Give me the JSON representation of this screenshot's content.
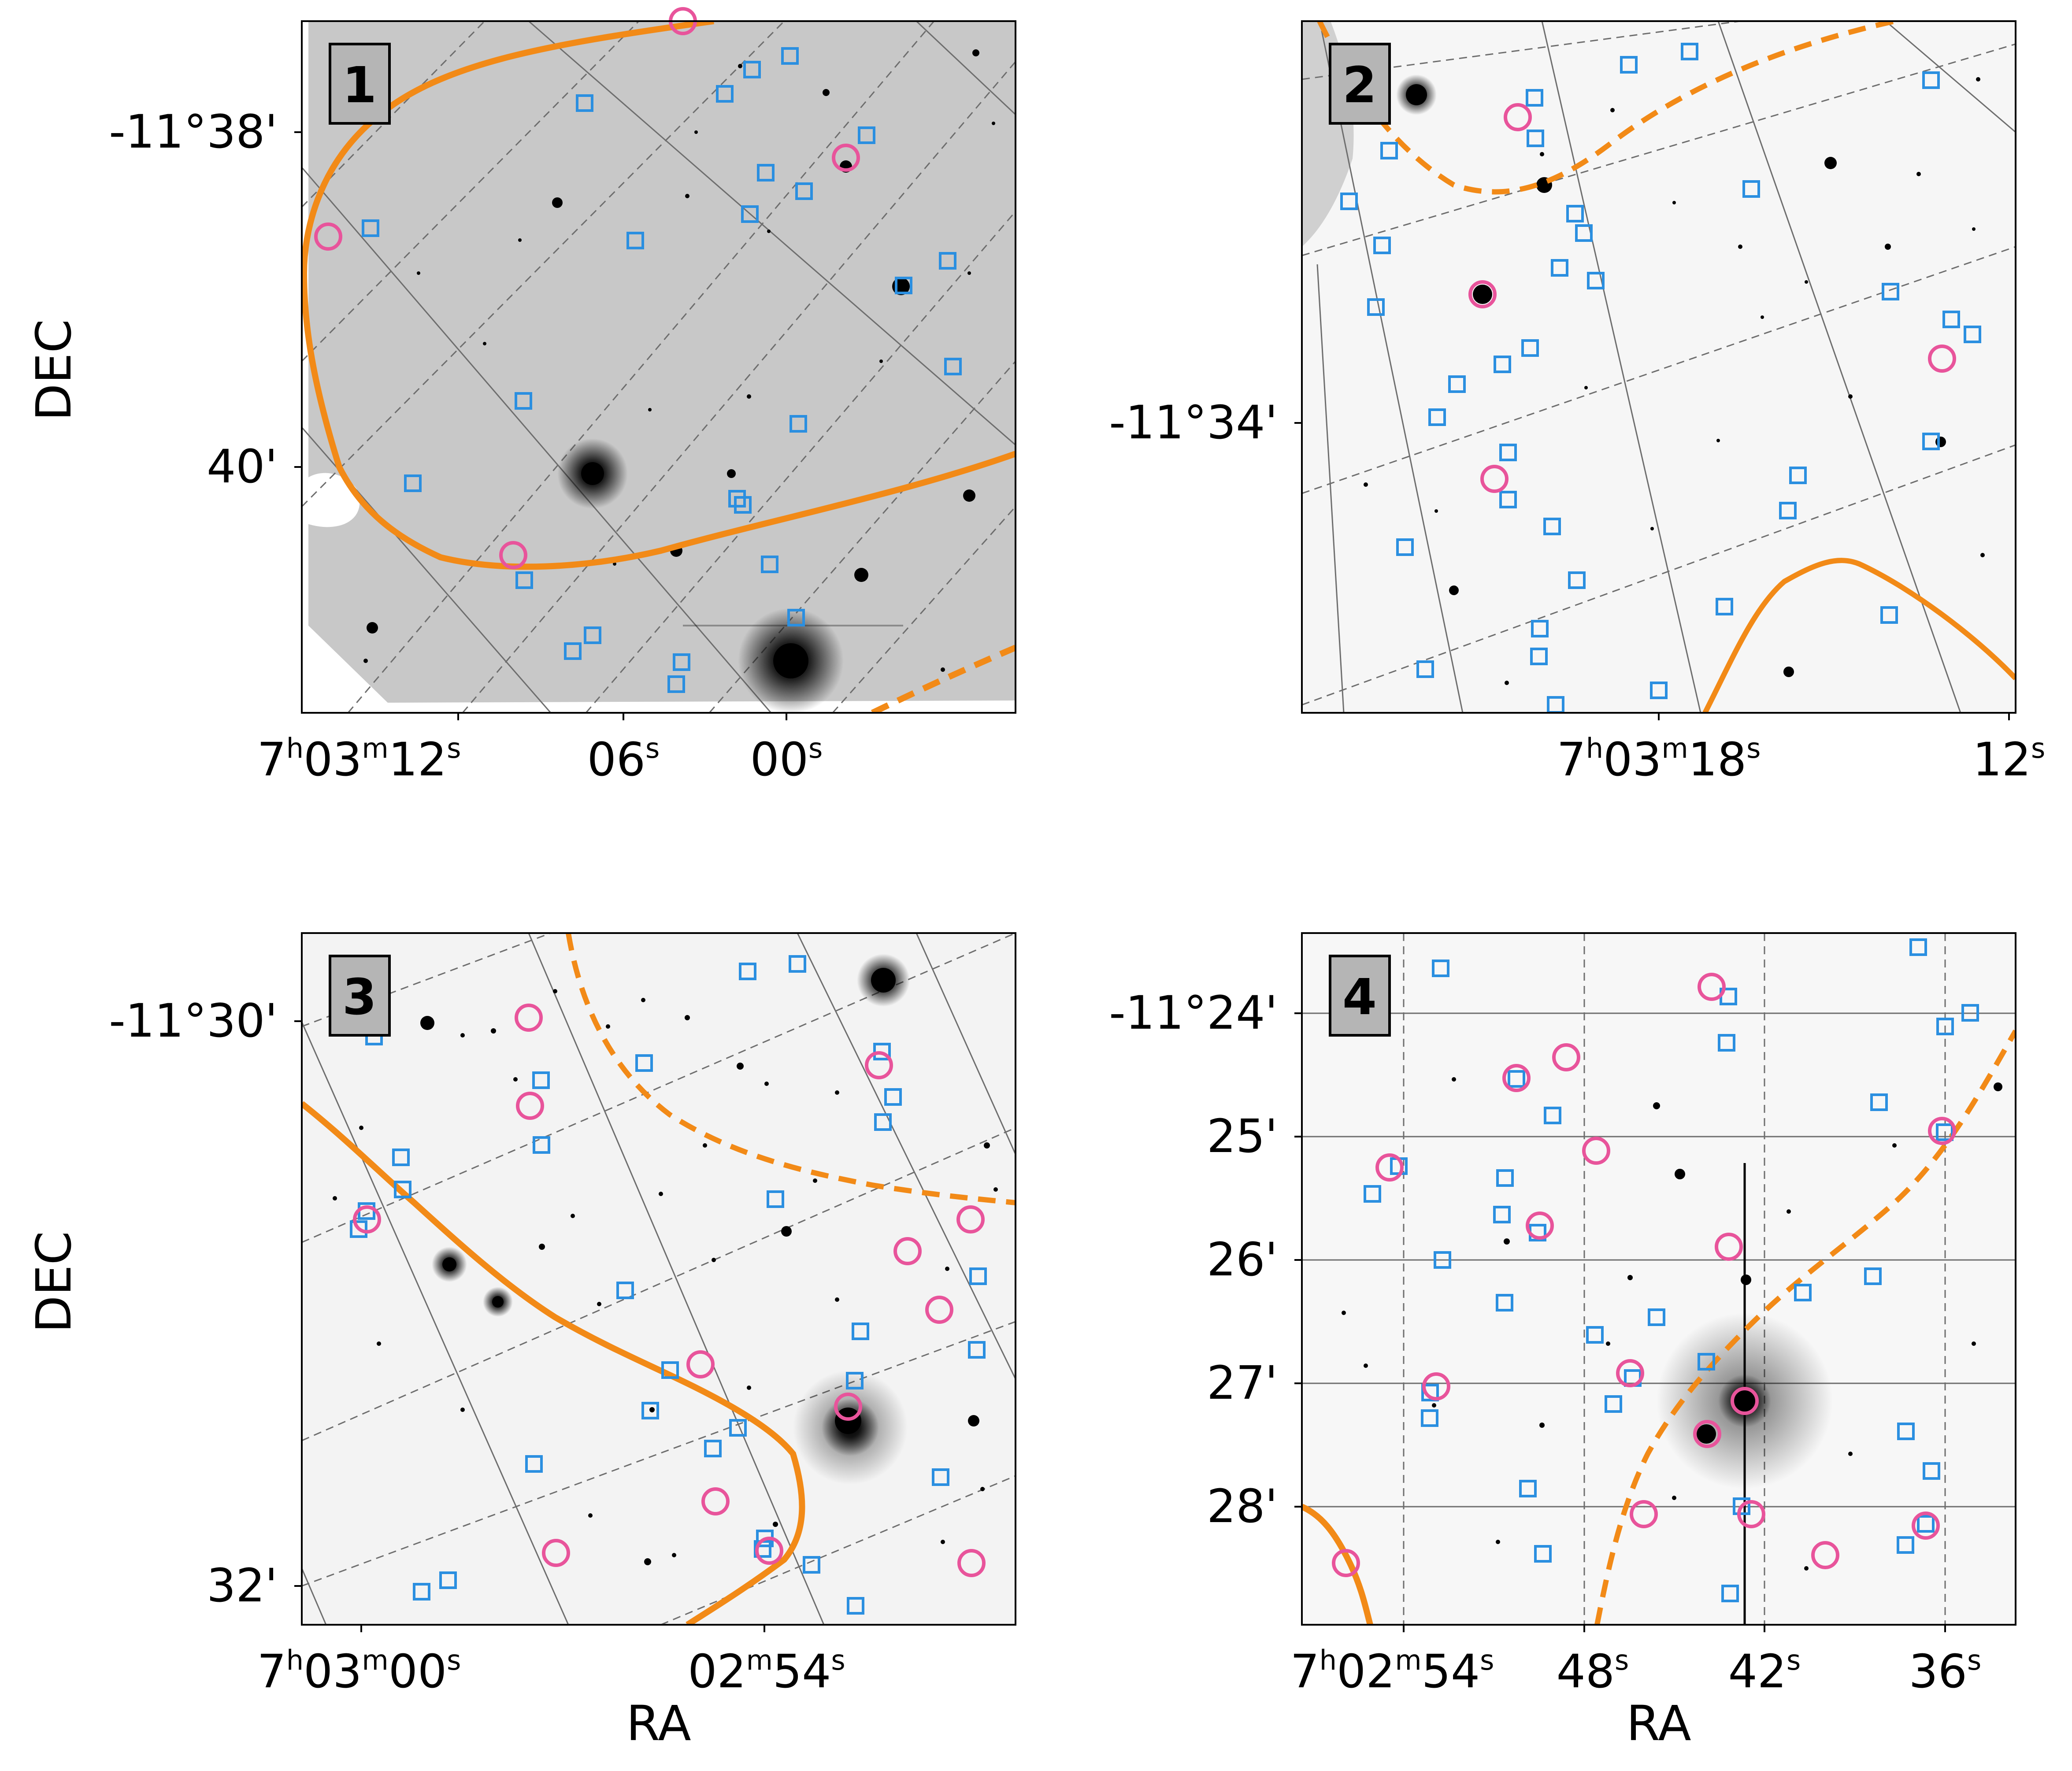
{
  "figure": {
    "colors": {
      "contour": "#f28a17",
      "square_marker": "#2b8fe0",
      "circle_marker": "#e8549b",
      "grid": "#666666",
      "panel_label_bg": "#b5b5b5"
    },
    "panels": [
      {
        "id": "1",
        "label": "1",
        "background": "#c8c8c8",
        "x_ticks": [
          {
            "main": "7",
            "sup1": "h",
            "mid": "03",
            "sup2": "m",
            "sec": "12",
            "sup3": "s"
          },
          {
            "main": "06",
            "sup1": "s"
          },
          {
            "main": "00",
            "sup1": "s"
          }
        ],
        "y_ticks": [
          "-11°38'",
          "40'"
        ],
        "ylabel": "DEC",
        "xlabel": ""
      },
      {
        "id": "2",
        "label": "2",
        "background": "#f6f6f6",
        "x_ticks": [
          {
            "main": "7",
            "sup1": "h",
            "mid": "03",
            "sup2": "m",
            "sec": "18",
            "sup3": "s"
          },
          {
            "main": "12",
            "sup1": "s"
          }
        ],
        "y_ticks": [
          "-11°34'"
        ],
        "ylabel": "",
        "xlabel": ""
      },
      {
        "id": "3",
        "label": "3",
        "background": "#f3f3f3",
        "x_ticks": [
          {
            "main": "7",
            "sup1": "h",
            "mid": "03",
            "sup2": "m",
            "sec": "00",
            "sup3": "s"
          },
          {
            "main": "02",
            "sup1": "m",
            "mid": "54",
            "sup2": "s"
          }
        ],
        "y_ticks": [
          "-11°30'",
          "32'"
        ],
        "ylabel": "DEC",
        "xlabel": "RA"
      },
      {
        "id": "4",
        "label": "4",
        "background": "#f7f7f7",
        "x_ticks": [
          {
            "main": "7",
            "sup1": "h",
            "mid": "02",
            "sup2": "m",
            "sec": "54",
            "sup3": "s"
          },
          {
            "main": "48",
            "sup1": "s"
          },
          {
            "main": "42",
            "sup1": "s"
          },
          {
            "main": "36",
            "sup1": "s"
          }
        ],
        "y_ticks": [
          "-11°24'",
          "25'",
          "26'",
          "27'",
          "28'"
        ],
        "ylabel": "",
        "xlabel": "RA"
      }
    ]
  }
}
